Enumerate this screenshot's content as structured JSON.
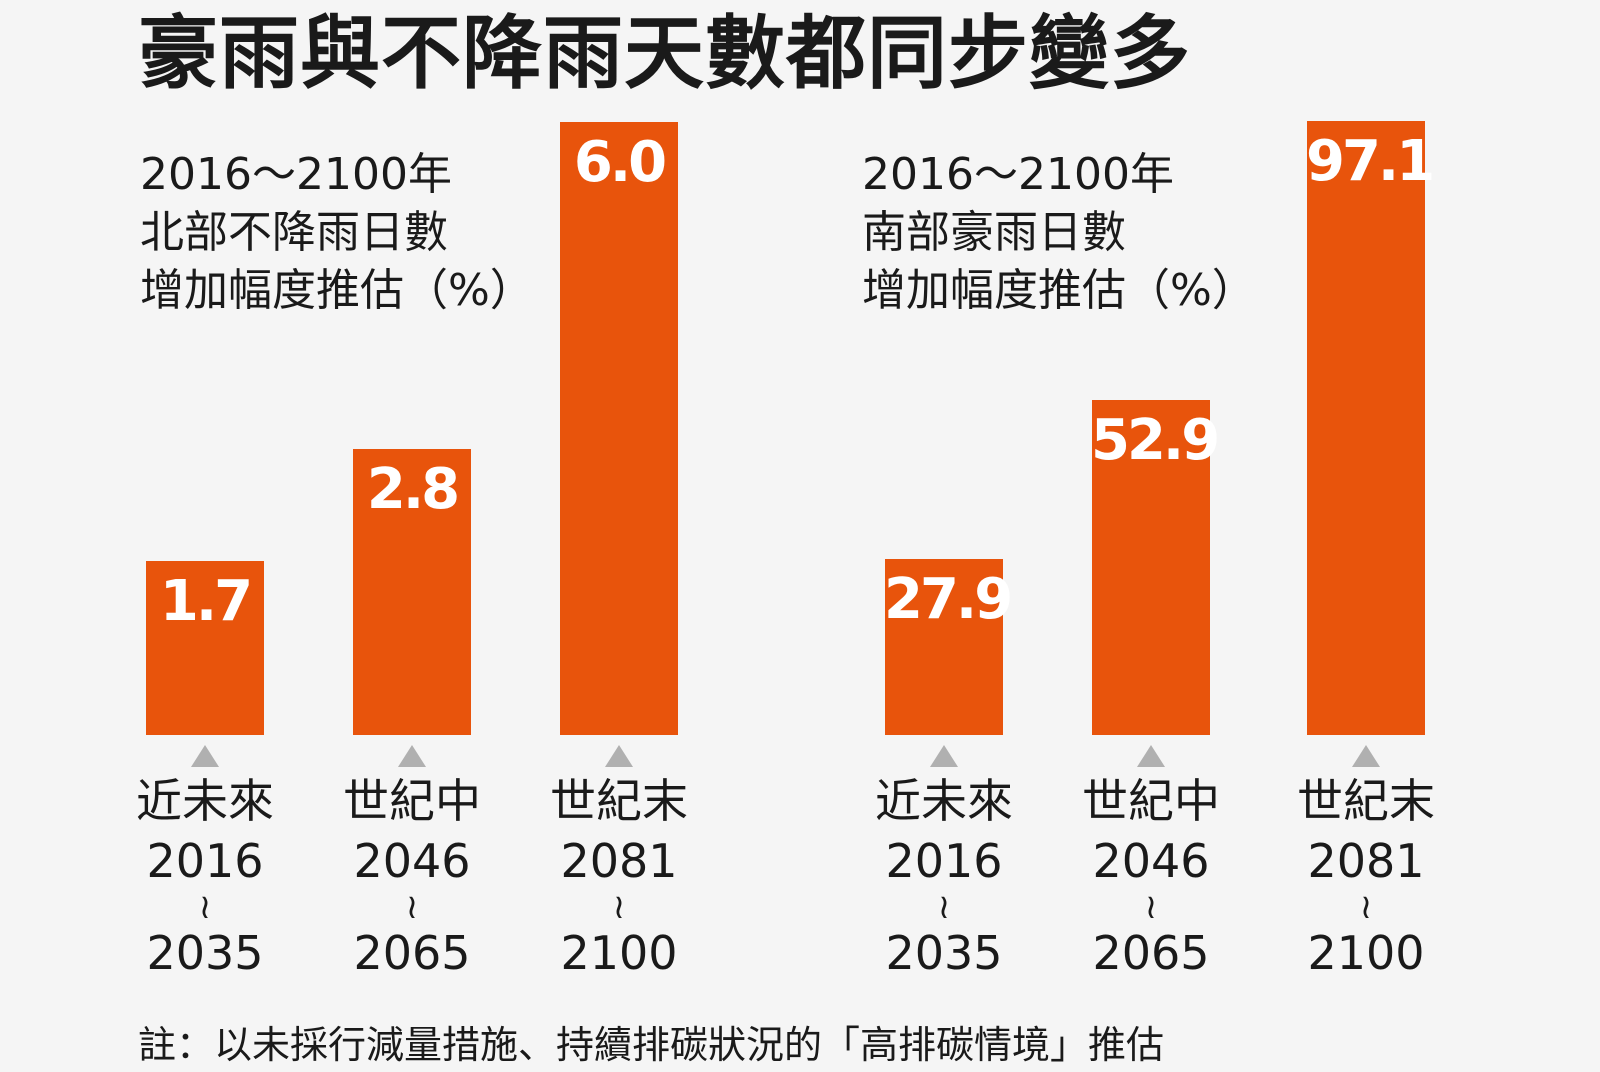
{
  "title": "豪雨與不降雨天數都同步變多",
  "note": "註：以未採行減量措施、持續排碳狀況的「高排碳情境」推估",
  "chart_data": [
    {
      "type": "bar",
      "title": [
        "2016～2100年",
        "北部不降雨日數",
        "增加幅度推估（%）"
      ],
      "categories": [
        {
          "name": "近未來",
          "start": "2016",
          "sep": "≀",
          "end": "2035"
        },
        {
          "name": "世紀中",
          "start": "2046",
          "sep": "≀",
          "end": "2065"
        },
        {
          "name": "世紀末",
          "start": "2081",
          "sep": "≀",
          "end": "2100"
        }
      ],
      "values": [
        1.7,
        2.8,
        6.0
      ],
      "value_labels": [
        "1.7",
        "2.8",
        "6.0"
      ],
      "unit": "%",
      "color": "#e8540c"
    },
    {
      "type": "bar",
      "title": [
        "2016～2100年",
        "南部豪雨日數",
        "增加幅度推估（%）"
      ],
      "categories": [
        {
          "name": "近未來",
          "start": "2016",
          "sep": "≀",
          "end": "2035"
        },
        {
          "name": "世紀中",
          "start": "2046",
          "sep": "≀",
          "end": "2065"
        },
        {
          "name": "世紀末",
          "start": "2081",
          "sep": "≀",
          "end": "2100"
        }
      ],
      "values": [
        27.9,
        52.9,
        97.1
      ],
      "value_labels": [
        "27.9",
        "52.9",
        "97.1"
      ],
      "unit": "%",
      "color": "#e8540c"
    }
  ]
}
